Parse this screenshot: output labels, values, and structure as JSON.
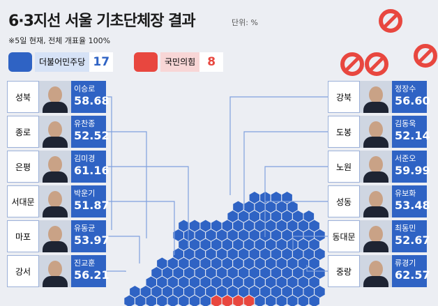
{
  "header": {
    "title": "6·3지선 서울 기초단체장 결과",
    "unit": "단위: %",
    "note": "※5일 현재, 전체 개표율 100%"
  },
  "parties": [
    {
      "name": "더불어민주당",
      "seats": "17",
      "color": "#2f63c4"
    },
    {
      "name": "국민의힘",
      "seats": "8",
      "color": "#e8473f"
    }
  ],
  "districts_left": [
    {
      "district": "성북",
      "candidate": "이승로",
      "share": "58.68"
    },
    {
      "district": "종로",
      "candidate": "유찬종",
      "share": "52.52"
    },
    {
      "district": "은평",
      "candidate": "김미경",
      "share": "61.16"
    },
    {
      "district": "서대문",
      "candidate": "박운기",
      "share": "51.87"
    },
    {
      "district": "마포",
      "candidate": "유동균",
      "share": "53.97"
    },
    {
      "district": "강서",
      "candidate": "진교훈",
      "share": "56.21"
    }
  ],
  "districts_right": [
    {
      "district": "강북",
      "candidate": "정장수",
      "share": "56.60"
    },
    {
      "district": "도봉",
      "candidate": "김동욱",
      "share": "52.14"
    },
    {
      "district": "노원",
      "candidate": "서준오",
      "share": "59.99"
    },
    {
      "district": "성동",
      "candidate": "유보화",
      "share": "53.48"
    },
    {
      "district": "동대문",
      "candidate": "최동민",
      "share": "52.67"
    },
    {
      "district": "중랑",
      "candidate": "류경기",
      "share": "62.57"
    }
  ]
}
